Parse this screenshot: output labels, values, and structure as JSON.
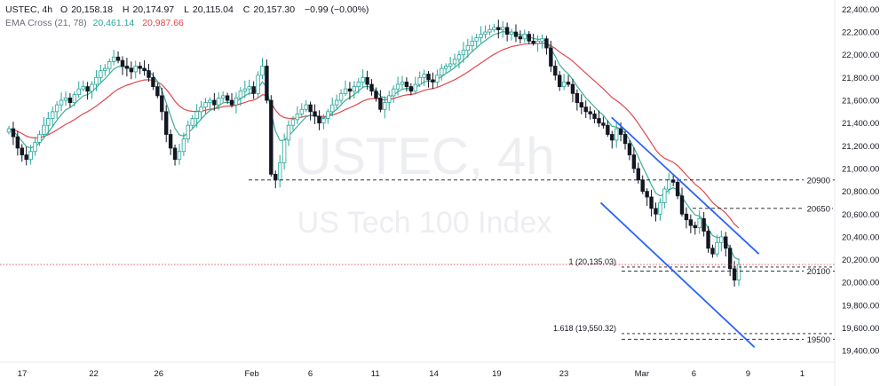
{
  "chart_data": {
    "type": "candlestick",
    "symbol": "USTEC, 4h",
    "watermark": {
      "line1": "USTEC, 4h",
      "line2": "US Tech 100 Index"
    },
    "ohlc": {
      "O": "20,158.18",
      "H": "20,174.97",
      "L": "20,115.04",
      "C": "20,157.30",
      "chg": "−0.99 (−0.00%)"
    },
    "indicator": {
      "name": "EMA Cross (21, 78)",
      "fast": "20,461.14",
      "slow": "20,987.66"
    },
    "colors": {
      "up": "#26a69a",
      "down": "#131722",
      "ema_fast": "#3fae93",
      "ema_slow": "#e0474c",
      "channel": "#2962ff",
      "price_line": "#e0474c"
    },
    "ylim": [
      19300,
      22450
    ],
    "y_ticks": [
      "19,400.00",
      "19,600.00",
      "19,800.00",
      "20,000.00",
      "20,200.00",
      "20,400.00",
      "20,600.00",
      "20,800.00",
      "21,000.00",
      "21,200.00",
      "21,400.00",
      "21,600.00",
      "21,800.00",
      "22,000.00",
      "22,200.00",
      "22,400.00"
    ],
    "x_ticks": [
      "17",
      "22",
      "26",
      "Feb",
      "6",
      "11",
      "14",
      "19",
      "23",
      "Mar",
      "6",
      "9",
      "1"
    ],
    "x_tick_day_index": [
      0,
      3.3,
      6.3,
      10.6,
      13.3,
      16.3,
      19,
      21.9,
      25,
      28.6,
      31,
      33.5,
      36
    ],
    "levels": [
      {
        "price": 20900,
        "label": "20900"
      },
      {
        "price": 20650,
        "label": "20650"
      },
      {
        "price": 20100,
        "label": "20100"
      },
      {
        "price": 19500,
        "label": "19500"
      }
    ],
    "fib": [
      {
        "price": 20135.03,
        "label": "1 (20,135.03)"
      },
      {
        "price": 19550.32,
        "label": "1.618 (19,550.32)"
      }
    ],
    "current_price": 20157.3,
    "channel": {
      "upper": [
        [
          27.2,
          21450
        ],
        [
          34.0,
          20250
        ]
      ],
      "lower": [
        [
          26.7,
          20700
        ],
        [
          33.8,
          19430
        ]
      ]
    },
    "closes": [
      21350,
      21280,
      21180,
      21120,
      21080,
      21150,
      21230,
      21300,
      21380,
      21440,
      21500,
      21560,
      21600,
      21620,
      21580,
      21650,
      21700,
      21720,
      21680,
      21740,
      21800,
      21860,
      21880,
      21940,
      21980,
      21950,
      21900,
      21880,
      21850,
      21900,
      21880,
      21860,
      21800,
      21720,
      21640,
      21500,
      21300,
      21180,
      21080,
      21150,
      21260,
      21380,
      21440,
      21500,
      21540,
      21580,
      21600,
      21560,
      21620,
      21640,
      21600,
      21560,
      21620,
      21680,
      21700,
      21720,
      21660,
      21820,
      21900,
      21600,
      20950,
      20900,
      21050,
      21250,
      21380,
      21430,
      21480,
      21520,
      21560,
      21500,
      21460,
      21400,
      21440,
      21500,
      21560,
      21600,
      21660,
      21700,
      21680,
      21720,
      21760,
      21800,
      21740,
      21680,
      21620,
      21520,
      21580,
      21640,
      21700,
      21740,
      21760,
      21720,
      21680,
      21740,
      21800,
      21830,
      21780,
      21760,
      21820,
      21880,
      21900,
      21920,
      21960,
      22000,
      22040,
      22080,
      22120,
      22150,
      22180,
      22200,
      22220,
      22240,
      22220,
      22240,
      22180,
      22200,
      22160,
      22140,
      22180,
      22120,
      22100,
      22120,
      22140,
      22060,
      21900,
      21820,
      21720,
      21760,
      21740,
      21660,
      21580,
      21540,
      21500,
      21480,
      21440,
      21400,
      21380,
      21300,
      21250,
      21350,
      21300,
      21220,
      21120,
      21000,
      20900,
      20800,
      20750,
      20650,
      20600,
      20700,
      20820,
      20900,
      20880,
      20760,
      20600,
      20550,
      20500,
      20480,
      20560,
      20450,
      20300,
      20250,
      20350,
      20400,
      20300,
      20120,
      20020,
      20157
    ]
  }
}
